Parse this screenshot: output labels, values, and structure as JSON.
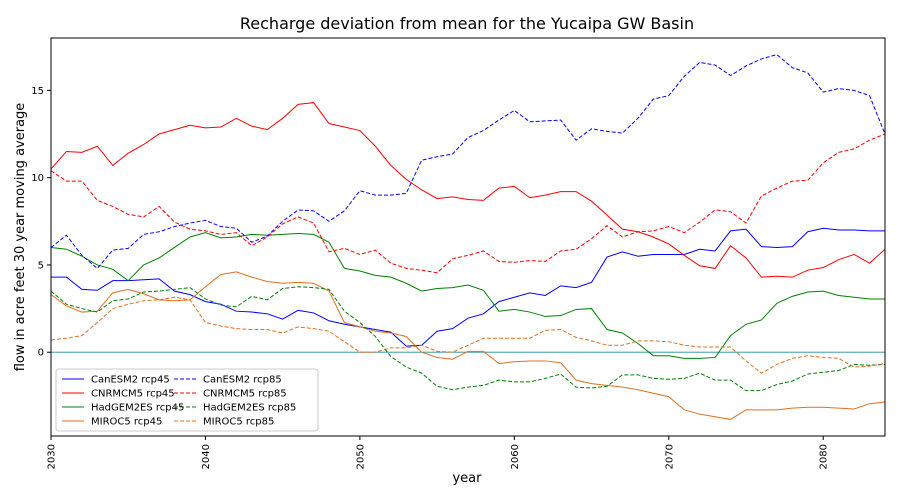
{
  "chart_data": {
    "type": "line",
    "title": "Recharge deviation from mean for the Yucaipa GW Basin",
    "xlabel": "year",
    "ylabel": "flow in acre feet 30 year moving average",
    "xlim": [
      2030,
      2084
    ],
    "ylim": [
      -4.8,
      18
    ],
    "xticks": [
      2030,
      2040,
      2050,
      2060,
      2070,
      2080
    ],
    "yticks": [
      0,
      5,
      10,
      15
    ],
    "zero_line_color": "#1f8a9a",
    "legend_position": "lower-left",
    "x": [
      2030,
      2031,
      2032,
      2033,
      2034,
      2035,
      2036,
      2037,
      2038,
      2039,
      2040,
      2041,
      2042,
      2043,
      2044,
      2045,
      2046,
      2047,
      2048,
      2049,
      2050,
      2051,
      2052,
      2053,
      2054,
      2055,
      2056,
      2057,
      2058,
      2059,
      2060,
      2061,
      2062,
      2063,
      2064,
      2065,
      2066,
      2067,
      2068,
      2069,
      2070,
      2071,
      2072,
      2073,
      2074,
      2075,
      2076,
      2077,
      2078,
      2079,
      2080,
      2081,
      2082,
      2083,
      2084
    ],
    "series": [
      {
        "name": "CanESM2 rcp45",
        "color": "#0000ff",
        "dash": "solid",
        "values": [
          4.3,
          4.3,
          3.6,
          3.55,
          4.1,
          4.1,
          4.15,
          4.2,
          3.5,
          3.3,
          2.9,
          2.75,
          2.35,
          2.3,
          2.2,
          1.9,
          2.4,
          2.25,
          1.8,
          1.6,
          1.45,
          1.3,
          1.15,
          0.35,
          0.4,
          1.2,
          1.35,
          1.95,
          2.2,
          2.9,
          3.15,
          3.4,
          3.25,
          3.8,
          3.7,
          4.0,
          5.45,
          5.75,
          5.5,
          5.6,
          5.6,
          5.6,
          5.9,
          5.8,
          6.95,
          7.05,
          6.05,
          6.0,
          6.05,
          6.9,
          7.1,
          7.0,
          7.0,
          6.95,
          6.95
        ]
      },
      {
        "name": "CNRMCM5 rcp45",
        "color": "#ff0000",
        "dash": "solid",
        "values": [
          10.5,
          11.5,
          11.45,
          11.8,
          10.7,
          11.4,
          11.9,
          12.5,
          12.75,
          13.0,
          12.85,
          12.9,
          13.4,
          12.95,
          12.75,
          13.4,
          14.2,
          14.3,
          13.1,
          12.9,
          12.7,
          11.8,
          10.7,
          9.9,
          9.3,
          8.8,
          8.9,
          8.75,
          8.7,
          9.4,
          9.5,
          8.85,
          9.0,
          9.2,
          9.2,
          8.65,
          7.85,
          7.05,
          6.9,
          6.6,
          6.2,
          5.55,
          4.95,
          4.8,
          6.1,
          5.4,
          4.3,
          4.35,
          4.3,
          4.7,
          4.85,
          5.3,
          5.6,
          5.1,
          5.9
        ]
      },
      {
        "name": "HadGEM2ES rcp45",
        "color": "#008000",
        "dash": "solid",
        "values": [
          6.0,
          5.9,
          5.5,
          5.0,
          4.75,
          4.1,
          5.0,
          5.4,
          6.0,
          6.6,
          6.85,
          6.55,
          6.6,
          6.75,
          6.7,
          6.75,
          6.8,
          6.75,
          6.3,
          4.8,
          4.65,
          4.4,
          4.3,
          3.95,
          3.5,
          3.65,
          3.7,
          3.85,
          3.55,
          2.35,
          2.45,
          2.3,
          2.05,
          2.1,
          2.45,
          2.5,
          1.3,
          1.1,
          0.5,
          -0.2,
          -0.2,
          -0.35,
          -0.35,
          -0.3,
          0.95,
          1.6,
          1.85,
          2.8,
          3.2,
          3.45,
          3.5,
          3.25,
          3.15,
          3.05,
          3.05
        ]
      },
      {
        "name": "MIROC5 rcp45",
        "color": "#e07020",
        "dash": "solid",
        "values": [
          3.3,
          2.65,
          2.3,
          2.35,
          3.4,
          3.6,
          3.35,
          3.0,
          2.95,
          3.0,
          3.75,
          4.45,
          4.6,
          4.3,
          4.05,
          3.95,
          4.0,
          3.95,
          3.5,
          1.7,
          1.45,
          1.2,
          1.1,
          0.9,
          0.0,
          -0.3,
          -0.4,
          0.05,
          0.05,
          -0.65,
          -0.55,
          -0.5,
          -0.5,
          -0.6,
          -1.6,
          -1.8,
          -1.9,
          -2.0,
          -2.15,
          -2.35,
          -2.55,
          -3.3,
          -3.55,
          -3.7,
          -3.85,
          -3.3,
          -3.3,
          -3.3,
          -3.2,
          -3.15,
          -3.15,
          -3.2,
          -3.25,
          -2.95,
          -2.85
        ]
      },
      {
        "name": "CanESM2 rcp85",
        "color": "#0000ff",
        "dash": "dashed",
        "values": [
          6.0,
          6.7,
          5.55,
          4.8,
          5.85,
          5.95,
          6.75,
          6.9,
          7.2,
          7.4,
          7.55,
          7.2,
          7.1,
          6.3,
          6.65,
          7.5,
          8.15,
          8.1,
          7.5,
          8.1,
          9.25,
          9.0,
          9.0,
          9.1,
          11.0,
          11.2,
          11.35,
          12.3,
          12.7,
          13.3,
          13.85,
          13.2,
          13.25,
          13.3,
          12.15,
          12.8,
          12.65,
          12.55,
          13.4,
          14.5,
          14.7,
          15.8,
          16.6,
          16.45,
          15.85,
          16.4,
          16.8,
          17.05,
          16.3,
          16.0,
          14.9,
          15.1,
          15.0,
          14.7,
          12.5
        ]
      },
      {
        "name": "CNRMCM5 rcp85",
        "color": "#ff0000",
        "dash": "dashed",
        "values": [
          10.4,
          9.8,
          9.8,
          8.7,
          8.35,
          7.9,
          7.75,
          8.35,
          7.45,
          7.05,
          6.95,
          6.75,
          6.85,
          6.1,
          6.6,
          7.35,
          7.75,
          7.4,
          5.75,
          5.95,
          5.6,
          5.85,
          5.1,
          4.8,
          4.7,
          4.55,
          5.35,
          5.55,
          5.8,
          5.2,
          5.15,
          5.25,
          5.2,
          5.8,
          5.9,
          6.5,
          7.25,
          6.6,
          6.9,
          6.95,
          7.2,
          6.85,
          7.45,
          8.15,
          8.05,
          7.4,
          8.95,
          9.4,
          9.8,
          9.85,
          10.85,
          11.45,
          11.65,
          12.15,
          12.5
        ]
      },
      {
        "name": "HadGEM2ES rcp85",
        "color": "#008000",
        "dash": "dashed",
        "values": [
          3.5,
          2.75,
          2.5,
          2.3,
          2.95,
          3.05,
          3.45,
          3.5,
          3.6,
          3.7,
          3.05,
          2.7,
          2.6,
          3.2,
          3.0,
          3.65,
          3.75,
          3.7,
          3.6,
          2.35,
          1.7,
          0.9,
          -0.25,
          -0.85,
          -1.2,
          -1.95,
          -2.15,
          -2.0,
          -1.9,
          -1.6,
          -1.7,
          -1.7,
          -1.5,
          -1.25,
          -2.0,
          -2.05,
          -1.95,
          -1.3,
          -1.3,
          -1.5,
          -1.55,
          -1.5,
          -1.2,
          -1.6,
          -1.6,
          -2.2,
          -2.2,
          -1.85,
          -1.65,
          -1.25,
          -1.15,
          -1.05,
          -0.7,
          -0.75,
          -0.7
        ]
      },
      {
        "name": "MIROC5 rcp85",
        "color": "#e07020",
        "dash": "dashed",
        "values": [
          0.7,
          0.8,
          0.95,
          1.7,
          2.5,
          2.75,
          2.95,
          3.0,
          3.15,
          3.0,
          1.7,
          1.5,
          1.35,
          1.3,
          1.3,
          1.1,
          1.45,
          1.35,
          1.2,
          0.6,
          0.0,
          0.0,
          0.25,
          0.25,
          0.4,
          0.05,
          0.0,
          0.4,
          0.8,
          0.8,
          0.8,
          0.8,
          1.25,
          1.3,
          0.85,
          0.65,
          0.4,
          0.4,
          0.65,
          0.65,
          0.6,
          0.4,
          0.3,
          0.3,
          0.3,
          -0.5,
          -1.2,
          -0.7,
          -0.35,
          -0.2,
          -0.3,
          -0.35,
          -0.85,
          -0.8,
          -0.65
        ]
      }
    ]
  }
}
